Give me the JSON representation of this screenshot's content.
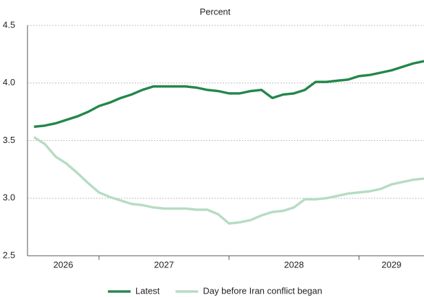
{
  "chart_data": {
    "type": "line",
    "subtitle": "Percent",
    "x": [
      2026.5,
      2026.583,
      2026.667,
      2026.75,
      2026.833,
      2026.917,
      2027,
      2027.083,
      2027.167,
      2027.25,
      2027.333,
      2027.417,
      2027.5,
      2027.583,
      2027.667,
      2027.75,
      2027.833,
      2027.917,
      2028,
      2028.083,
      2028.167,
      2028.25,
      2028.333,
      2028.417,
      2028.5,
      2028.583,
      2028.667,
      2028.75,
      2028.833,
      2028.917,
      2029,
      2029.083,
      2029.167,
      2029.25,
      2029.333,
      2029.417,
      2029.5
    ],
    "series": [
      {
        "name": "Latest",
        "color": "#23874a",
        "values": [
          3.62,
          3.63,
          3.65,
          3.68,
          3.71,
          3.75,
          3.8,
          3.83,
          3.87,
          3.9,
          3.94,
          3.97,
          3.97,
          3.97,
          3.97,
          3.96,
          3.94,
          3.93,
          3.91,
          3.91,
          3.93,
          3.94,
          3.87,
          3.9,
          3.91,
          3.94,
          4.01,
          4.01,
          4.02,
          4.03,
          4.06,
          4.07,
          4.09,
          4.11,
          4.14,
          4.17,
          4.19
        ]
      },
      {
        "name": "Day before Iran conflict began",
        "color": "#b6dcc2",
        "values": [
          3.53,
          3.47,
          3.36,
          3.3,
          3.22,
          3.13,
          3.05,
          3.01,
          2.98,
          2.95,
          2.94,
          2.92,
          2.91,
          2.91,
          2.91,
          2.9,
          2.9,
          2.86,
          2.78,
          2.79,
          2.81,
          2.85,
          2.88,
          2.89,
          2.92,
          2.99,
          2.99,
          3.0,
          3.02,
          3.04,
          3.05,
          3.06,
          3.08,
          3.12,
          3.14,
          3.16,
          3.17
        ]
      }
    ],
    "xlim": [
      2026.45,
      2029.5
    ],
    "xticks": [
      2027,
      2028,
      2029
    ],
    "year_labels": [
      2026,
      2027,
      2028,
      2029
    ],
    "ylim": [
      2.5,
      4.5
    ],
    "yticks": [
      2.5,
      {
        "value": 3,
        "label": "3.0"
      },
      3.5,
      {
        "value": 4,
        "label": "4.0"
      },
      4.5
    ],
    "grid": true,
    "legend": "bottom"
  }
}
